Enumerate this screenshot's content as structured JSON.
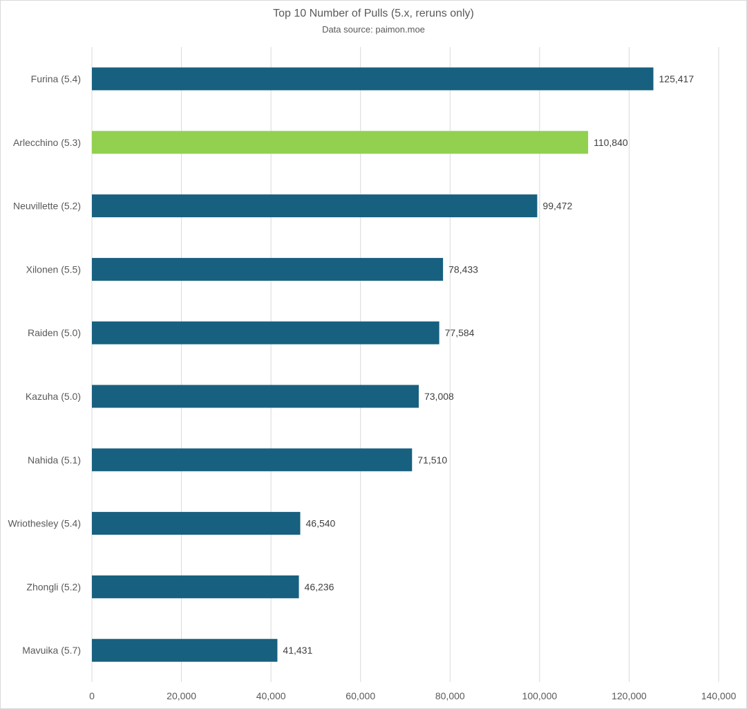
{
  "chart_data": {
    "type": "bar",
    "orientation": "horizontal",
    "title": "Top 10 Number of Pulls (5.x, reruns only)",
    "subtitle": "Data source: paimon.moe",
    "categories": [
      "Furina (5.4)",
      "Arlecchino (5.3)",
      "Neuvillette (5.2)",
      "Xilonen (5.5)",
      "Raiden (5.0)",
      "Kazuha (5.0)",
      "Nahida (5.1)",
      "Wriothesley (5.4)",
      "Zhongli (5.2)",
      "Mavuika (5.7)"
    ],
    "values": [
      125417,
      110840,
      99472,
      78433,
      77584,
      73008,
      71510,
      46540,
      46236,
      41431
    ],
    "data_labels": [
      "125,417",
      "110,840",
      "99,472",
      "78,433",
      "77,584",
      "73,008",
      "71,510",
      "46,540",
      "46,236",
      "41,431"
    ],
    "highlight_index": 1,
    "xlim": [
      0,
      140000
    ],
    "xticks": [
      0,
      20000,
      40000,
      60000,
      80000,
      100000,
      120000,
      140000
    ],
    "xtick_labels": [
      "0",
      "20,000",
      "40,000",
      "60,000",
      "80,000",
      "100,000",
      "120,000",
      "140,000"
    ],
    "xlabel": "",
    "ylabel": "",
    "grid": "vertical",
    "legend": "none",
    "colors": {
      "bar": "#17607f",
      "highlight": "#92d050",
      "grid": "#d9d9d9",
      "text": "#595959"
    }
  }
}
